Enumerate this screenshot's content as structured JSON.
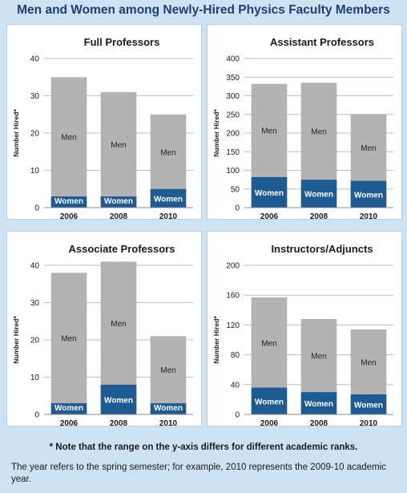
{
  "title": "Men and Women among Newly-Hired Physics Faculty Members",
  "note": "* Note that the range on the y-axis differs for different academic ranks.",
  "footnote": "The year refers to the spring semester; for example, 2010 represents the 2009-10 academic year.",
  "colors": {
    "men": "#b3b3b3",
    "women": "#1e5b93",
    "grid": "#bdbdbd"
  },
  "chart_data": [
    {
      "type": "bar",
      "stacked": true,
      "title": "Full Professors",
      "ylabel": "Number Hired*",
      "categories": [
        "2006",
        "2008",
        "2010"
      ],
      "ylim": [
        0,
        40
      ],
      "yticks": [
        0,
        10,
        20,
        30,
        40
      ],
      "series": [
        {
          "name": "Women",
          "values": [
            3,
            3,
            5
          ]
        },
        {
          "name": "Men",
          "values": [
            32,
            28,
            20
          ]
        }
      ]
    },
    {
      "type": "bar",
      "stacked": true,
      "title": "Assistant Professors",
      "ylabel": "Number Hired*",
      "categories": [
        "2006",
        "2008",
        "2010"
      ],
      "ylim": [
        0,
        400
      ],
      "yticks": [
        0,
        50,
        100,
        150,
        200,
        250,
        300,
        350,
        400
      ],
      "series": [
        {
          "name": "Women",
          "values": [
            82,
            75,
            72
          ]
        },
        {
          "name": "Men",
          "values": [
            250,
            260,
            178
          ]
        }
      ]
    },
    {
      "type": "bar",
      "stacked": true,
      "title": "Associate Professors",
      "ylabel": "Number Hired*",
      "categories": [
        "2006",
        "2008",
        "2010"
      ],
      "ylim": [
        0,
        40
      ],
      "yticks": [
        0,
        10,
        20,
        30,
        40
      ],
      "series": [
        {
          "name": "Women",
          "values": [
            3,
            8,
            3
          ]
        },
        {
          "name": "Men",
          "values": [
            35,
            33,
            18
          ]
        }
      ]
    },
    {
      "type": "bar",
      "stacked": true,
      "title": "Instructors/Adjuncts",
      "ylabel": "Number Hired*",
      "categories": [
        "2006",
        "2008",
        "2010"
      ],
      "ylim": [
        0,
        200
      ],
      "yticks": [
        0,
        40,
        80,
        120,
        160,
        200
      ],
      "series": [
        {
          "name": "Women",
          "values": [
            36,
            30,
            27
          ]
        },
        {
          "name": "Men",
          "values": [
            121,
            98,
            87
          ]
        }
      ]
    }
  ]
}
